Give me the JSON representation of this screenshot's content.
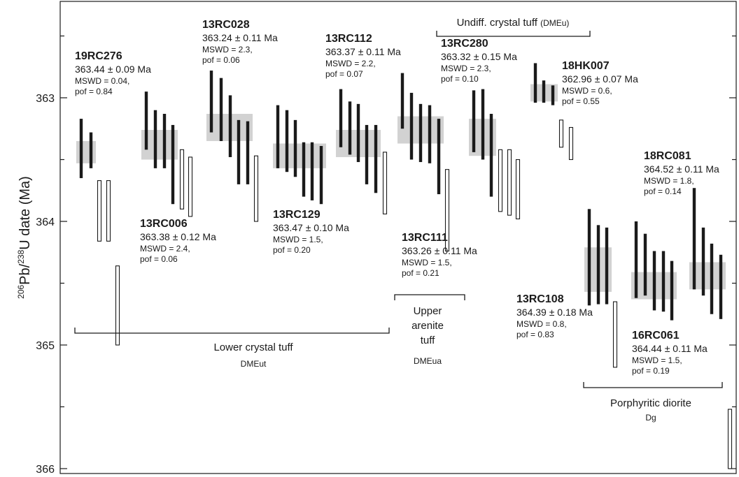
{
  "chart_data": {
    "type": "scatter",
    "ylabel": "206Pb/238U date (Ma)",
    "ylabel_parts": {
      "sup1": "206",
      "t1": "Pb/",
      "sup2": "238",
      "t2": "U date (Ma)"
    },
    "yticks": [
      "363",
      "364",
      "365",
      "366"
    ],
    "ylim": [
      362.33,
      366.05
    ],
    "y_inverted": true,
    "samples": [
      {
        "name": "19RC276",
        "age": "363.44 ± 0.09 Ma",
        "mswd": "MSWD = 0.04,",
        "pof": "pof = 0.84",
        "mean": 363.44,
        "mean_err": 0.09,
        "analyses": [
          [
            363.17,
            363.65,
            true
          ],
          [
            363.28,
            363.57,
            true
          ],
          [
            363.67,
            364.16,
            false
          ],
          [
            363.67,
            364.16,
            false
          ],
          [
            364.36,
            365.0,
            false
          ]
        ]
      },
      {
        "name": "13RC006",
        "age": "363.38 ± 0.12 Ma",
        "mswd": "MSWD = 2.4,",
        "pof": "pof = 0.06",
        "mean": 363.38,
        "mean_err": 0.12,
        "analyses": [
          [
            362.95,
            363.42,
            true
          ],
          [
            363.1,
            363.57,
            true
          ],
          [
            363.13,
            363.57,
            true
          ],
          [
            363.22,
            363.86,
            true
          ],
          [
            363.42,
            363.9,
            false
          ],
          [
            363.48,
            363.96,
            false
          ]
        ]
      },
      {
        "name": "13RC028",
        "age": "363.24 ± 0.11 Ma",
        "mswd": "MSWD = 2.3,",
        "pof": "pof = 0.06",
        "mean": 363.24,
        "mean_err": 0.11,
        "analyses": [
          [
            362.78,
            363.28,
            true
          ],
          [
            362.84,
            363.35,
            true
          ],
          [
            362.98,
            363.48,
            true
          ],
          [
            363.18,
            363.7,
            true
          ],
          [
            363.19,
            363.7,
            true
          ],
          [
            363.47,
            364.0,
            false
          ]
        ]
      },
      {
        "name": "13RC129",
        "age": "363.47 ± 0.10 Ma",
        "mswd": "MSWD = 1.5,",
        "pof": "pof = 0.20",
        "mean": 363.47,
        "mean_err": 0.1,
        "analyses": [
          [
            363.06,
            363.57,
            true
          ],
          [
            363.1,
            363.6,
            true
          ],
          [
            363.18,
            363.64,
            true
          ],
          [
            363.36,
            363.8,
            true
          ],
          [
            363.36,
            363.83,
            true
          ],
          [
            363.39,
            363.86,
            true
          ]
        ]
      },
      {
        "name": "13RC112",
        "age": "363.37 ± 0.11 Ma",
        "mswd": "MSWD = 2.2,",
        "pof": "pof = 0.07",
        "mean": 363.37,
        "mean_err": 0.11,
        "analyses": [
          [
            362.93,
            363.4,
            true
          ],
          [
            363.03,
            363.46,
            true
          ],
          [
            363.05,
            363.52,
            true
          ],
          [
            363.22,
            363.7,
            true
          ],
          [
            363.22,
            363.77,
            true
          ],
          [
            363.44,
            363.94,
            false
          ]
        ]
      },
      {
        "name": "13RC111",
        "age": "363.26 ± 0.11 Ma",
        "mswd": "MSWD = 1.5,",
        "pof": "pof = 0.21",
        "mean": 363.26,
        "mean_err": 0.11,
        "analyses": [
          [
            362.8,
            363.25,
            true
          ],
          [
            362.96,
            363.5,
            true
          ],
          [
            363.05,
            363.52,
            true
          ],
          [
            363.06,
            363.53,
            true
          ],
          [
            363.17,
            363.78,
            true
          ],
          [
            363.58,
            364.24,
            false
          ]
        ]
      },
      {
        "name": "13RC280",
        "age": "363.32 ± 0.15 Ma",
        "mswd": "MSWD = 2.3,",
        "pof": "pof = 0.10",
        "mean": 363.32,
        "mean_err": 0.15,
        "analyses": [
          [
            362.94,
            363.44,
            true
          ],
          [
            362.93,
            363.5,
            true
          ],
          [
            363.13,
            363.8,
            true
          ],
          [
            363.42,
            363.92,
            false
          ],
          [
            363.42,
            363.95,
            false
          ],
          [
            363.5,
            363.98,
            false
          ]
        ]
      },
      {
        "name": "18HK007",
        "age": "362.96 ± 0.07 Ma",
        "mswd": "MSWD = 0.6,",
        "pof": "pof = 0.55",
        "mean": 362.96,
        "mean_err": 0.07,
        "analyses": [
          [
            362.72,
            363.04,
            true
          ],
          [
            362.86,
            363.04,
            true
          ],
          [
            362.9,
            363.06,
            true
          ],
          [
            363.18,
            363.4,
            false
          ],
          [
            363.24,
            363.5,
            false
          ]
        ]
      },
      {
        "name": "13RC108",
        "age": "364.39 ± 0.18 Ma",
        "mswd": "MSWD = 0.8,",
        "pof": "pof = 0.83",
        "mean": 364.39,
        "mean_err": 0.18,
        "analyses": [
          [
            363.9,
            364.68,
            true
          ],
          [
            364.03,
            364.67,
            true
          ],
          [
            364.05,
            364.67,
            true
          ],
          [
            364.65,
            365.18,
            false
          ]
        ]
      },
      {
        "name": "18RC081",
        "age": "364.52 ± 0.11 Ma",
        "mswd": "MSWD = 1.8,",
        "pof": "pof = 0.14",
        "mean": 364.52,
        "mean_err": 0.11,
        "analyses": [
          [
            364.0,
            364.62,
            true
          ],
          [
            364.1,
            364.6,
            true
          ],
          [
            364.24,
            364.72,
            true
          ],
          [
            364.24,
            364.73,
            true
          ],
          [
            364.32,
            364.8,
            true
          ]
        ]
      },
      {
        "name": "16RC061",
        "age": "364.44 ± 0.11 Ma",
        "mswd": "MSWD = 1.5,",
        "pof": "pof = 0.19",
        "mean": 364.44,
        "mean_err": 0.11,
        "analyses": [
          [
            363.73,
            364.55,
            true
          ],
          [
            364.05,
            364.6,
            true
          ],
          [
            364.18,
            364.75,
            true
          ],
          [
            364.27,
            364.79,
            true
          ],
          [
            365.52,
            366.0,
            false
          ]
        ]
      }
    ],
    "groups": [
      {
        "label": "Lower crystal tuff",
        "code": "DMEut"
      },
      {
        "label": "Upper arenite tuff",
        "label_lines": [
          "Upper",
          "arenite",
          "tuff"
        ],
        "code": "DMEua"
      },
      {
        "label": "Undiff. crystal tuff",
        "code": "DMEu"
      },
      {
        "label": "Porphyritic diorite",
        "code": "Dg"
      }
    ]
  }
}
